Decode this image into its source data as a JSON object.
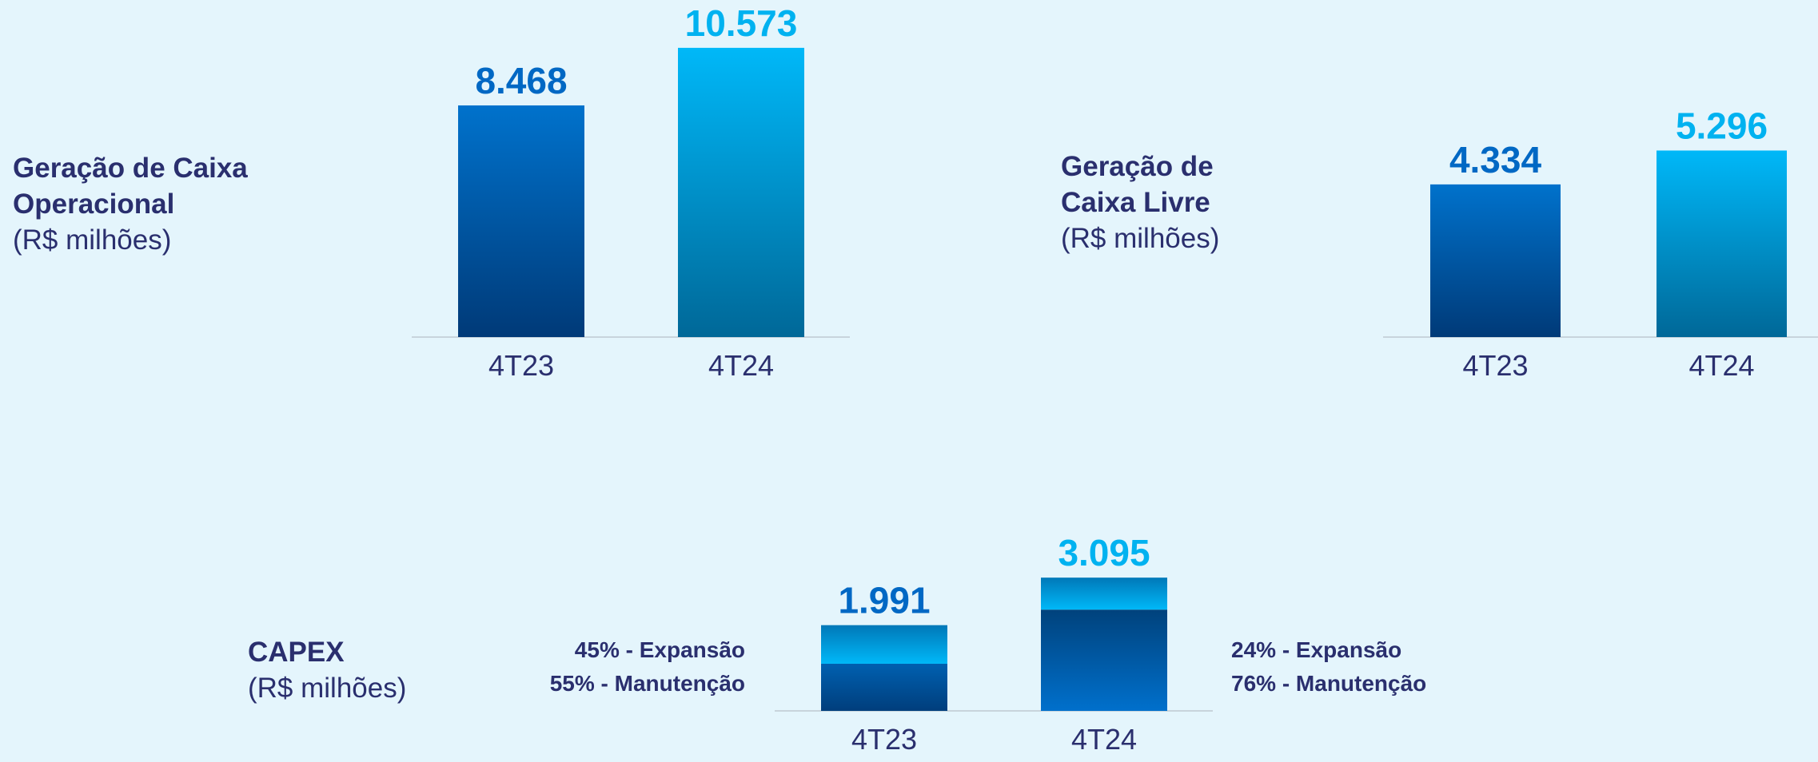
{
  "chart_data": [
    {
      "type": "bar",
      "title": [
        "Geração de Caixa",
        "Operacional"
      ],
      "subtitle": "(R$ milhões)",
      "categories": [
        "4T23",
        "4T24"
      ],
      "values": [
        8468,
        10573
      ],
      "value_labels": [
        "8.468",
        "10.573"
      ],
      "colors": [
        "#0068c4",
        "#00b2f0"
      ]
    },
    {
      "type": "bar",
      "title": [
        "Geração de",
        "Caixa Livre"
      ],
      "subtitle": "(R$ milhões)",
      "categories": [
        "4T23",
        "4T24"
      ],
      "values": [
        4334,
        5296
      ],
      "value_labels": [
        "4.334",
        "5.296"
      ],
      "colors": [
        "#0068c4",
        "#00b2f0"
      ]
    },
    {
      "type": "stacked_bar",
      "title": [
        "CAPEX"
      ],
      "subtitle": "(R$ milhões)",
      "categories": [
        "4T23",
        "4T24"
      ],
      "values": [
        1991,
        3095
      ],
      "value_labels": [
        "1.991",
        "3.095"
      ],
      "colors": [
        "#0068c4",
        "#00b2f0"
      ],
      "series": [
        {
          "name": "Expansão",
          "color": "#00b4f5",
          "values": [
            45,
            24
          ],
          "value_labels": [
            "45% - Expansão",
            "24% - Expansão"
          ]
        },
        {
          "name": "Manutenção",
          "color": "#0060b0",
          "values": [
            55,
            76
          ],
          "value_labels": [
            "55% - Manutenção",
            "76% - Manutenção"
          ]
        }
      ]
    }
  ]
}
